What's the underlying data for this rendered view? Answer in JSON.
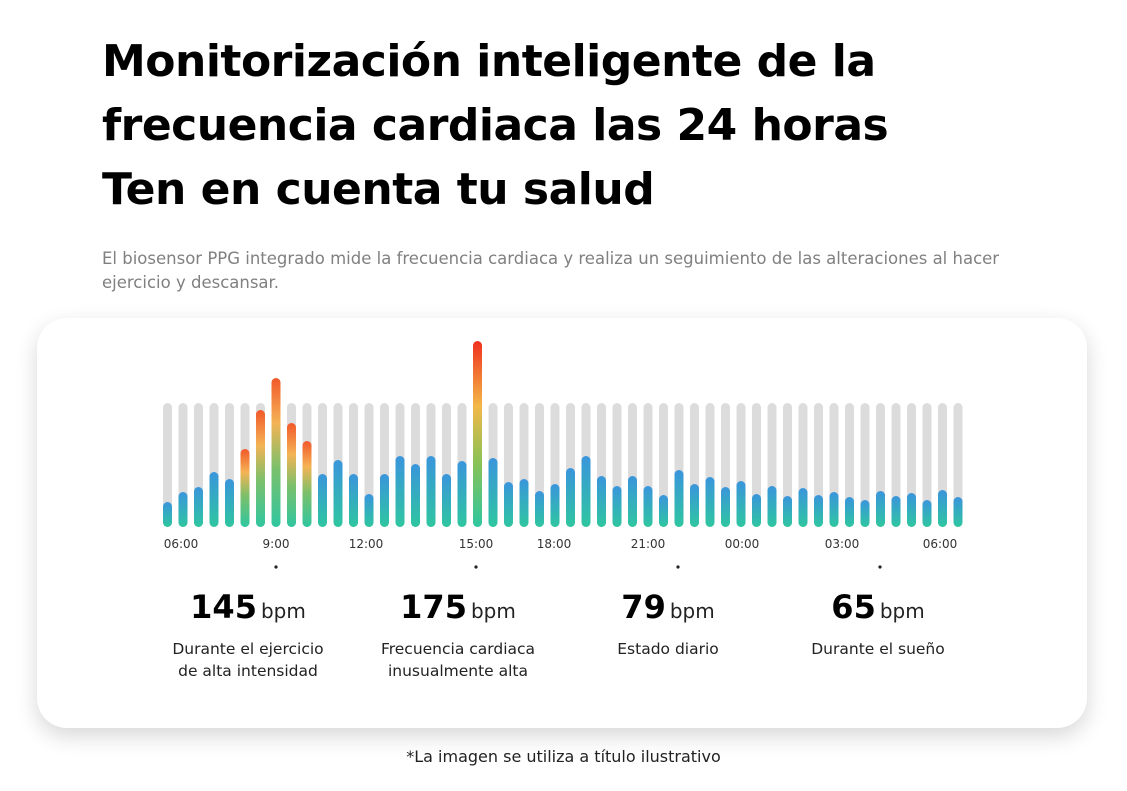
{
  "header": {
    "title_lines": [
      "Monitorización inteligente de la",
      "frecuencia cardiaca las 24 horas",
      "Ten en cuenta tu salud"
    ],
    "subtitle": "El biosensor PPG integrado mide la frecuencia cardiaca y realiza un seguimiento de las alteraciones al hacer ejercicio y descansar."
  },
  "chart_data": {
    "type": "bar",
    "values": [
      25,
      35,
      40,
      55,
      48,
      78,
      117,
      149,
      104,
      86,
      53,
      67,
      53,
      33,
      53,
      71,
      63,
      71,
      53,
      66,
      186,
      69,
      45,
      48,
      36,
      43,
      59,
      71,
      51,
      41,
      51,
      41,
      32,
      57,
      43,
      50,
      40,
      46,
      33,
      41,
      31,
      39,
      32,
      35,
      30,
      27,
      36,
      31,
      34,
      27,
      37,
      30
    ],
    "ylim": [
      0,
      200
    ],
    "time_labels": [
      "06:00",
      "9:00",
      "12:00",
      "15:00",
      "18:00",
      "21:00",
      "00:00",
      "03:00",
      "06:00"
    ]
  },
  "stats": [
    {
      "value": 145,
      "unit": "bpm",
      "label": "Durante el ejercicio de alta intensidad"
    },
    {
      "value": 175,
      "unit": "bpm",
      "label": "Frecuencia cardiaca inusualmente alta"
    },
    {
      "value": 79,
      "unit": "bpm",
      "label": "Estado diario"
    },
    {
      "value": 65,
      "unit": "bpm",
      "label": "Durante el sueño"
    }
  ],
  "footnote": "*La imagen se utiliza a título ilustrativo"
}
